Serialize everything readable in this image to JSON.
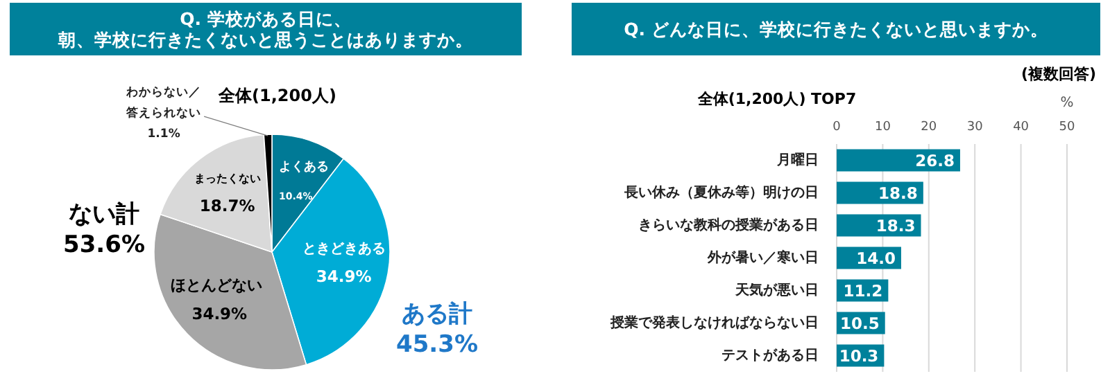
{
  "chart_data": [
    {
      "type": "pie",
      "title": "Q. 学校がある日に、朝、学校に行きたくないと思うことはありますか。",
      "subtitle": "全体(1,200人)",
      "categories": [
        "よくある",
        "ときどきある",
        "ほとんどない",
        "まったくない",
        "わからない／答えられない"
      ],
      "values": [
        10.4,
        34.9,
        34.9,
        18.7,
        1.1
      ],
      "colors": [
        "#007a96",
        "#00acd6",
        "#a6a6a6",
        "#d9d9d9",
        "#000000"
      ],
      "value_labels": [
        "10.4%",
        "34.9%",
        "34.9%",
        "18.7%",
        "1.1%"
      ],
      "annotations": [
        "ない計 53.6%",
        "ある計 45.3%"
      ]
    },
    {
      "type": "bar",
      "orientation": "horizontal",
      "title": "Q. どんな日に、学校に行きたくないと思いますか。",
      "subtitle": "全体(1,200人) TOP7",
      "xlabel": "%",
      "categories": [
        "月曜日",
        "長い休み（夏休み等）明けの日",
        "きらいな教科の授業がある日",
        "外が暑い／寒い日",
        "天気が悪い日",
        "授業で発表しなければならない日",
        "テストがある日"
      ],
      "values": [
        26.8,
        18.8,
        18.3,
        14.0,
        11.2,
        10.5,
        10.3
      ],
      "value_labels": [
        "26.8",
        "18.8",
        "18.3",
        "14.0",
        "11.2",
        "10.5",
        "10.3"
      ],
      "color": "#00819b",
      "xlim": [
        0,
        50
      ],
      "xticks": [
        0,
        10,
        20,
        30,
        40,
        50
      ],
      "grid": "x",
      "annotations": [
        "(複数回答)"
      ]
    }
  ]
}
